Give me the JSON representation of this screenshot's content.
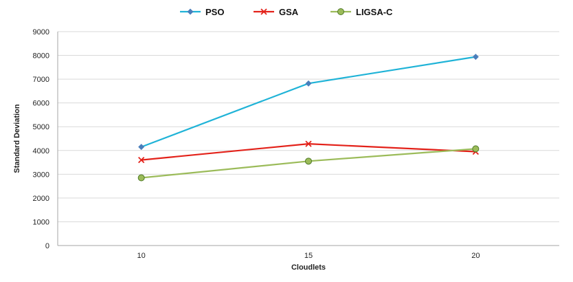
{
  "chart_data": {
    "type": "line",
    "title": "",
    "xlabel": "Cloudlets",
    "ylabel": "Standard Deviation",
    "categories": [
      "10",
      "15",
      "20"
    ],
    "yticks": [
      "0",
      "1000",
      "2000",
      "3000",
      "4000",
      "5000",
      "6000",
      "7000",
      "8000",
      "9000"
    ],
    "ylim": [
      0,
      9000
    ],
    "grid": "horizontal",
    "legend_position": "top",
    "series": [
      {
        "name": "PSO",
        "values": [
          4150,
          6820,
          7940
        ],
        "color": "#1fb3d7",
        "marker_color": "#4a7ebb",
        "marker": "diamond"
      },
      {
        "name": "GSA",
        "values": [
          3600,
          4280,
          3950
        ],
        "color": "#e32119",
        "marker_color": "#e32119",
        "marker": "x"
      },
      {
        "name": "LIGSA-C",
        "values": [
          2850,
          3550,
          4070
        ],
        "color": "#9bbb59",
        "marker_color": "#9bbb59",
        "marker": "circle"
      }
    ]
  }
}
